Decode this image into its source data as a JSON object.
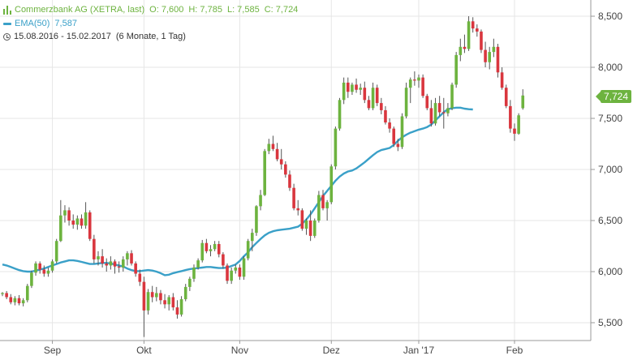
{
  "legend": {
    "instrument": "Commerzbank AG (XETRA, last)",
    "open_label": "O: 7,600",
    "high_label": "H: 7,785",
    "low_label": "L: 7,585",
    "close_label": "C: 7,724",
    "ema_label": "EMA(50)",
    "ema_value": "7,587",
    "date_range": "15.08.2016 - 15.02.2017",
    "period": "(6 Monate, 1 Tag)",
    "candle_icon": "candlestick-icon",
    "ema_icon": "line-dash-icon",
    "period_icon": "clock-icon"
  },
  "last_price_label": "7,724",
  "colors": {
    "up": "#6db33f",
    "down": "#d9363e",
    "ema": "#3aa0c8",
    "grid": "#e6e6e6",
    "axis_text": "#444444"
  },
  "chart_data": {
    "type": "candlestick",
    "title": "",
    "xlabel": "",
    "ylabel": "",
    "ylim": [
      5300,
      8650
    ],
    "y_ticks": [
      "5,500",
      "6,000",
      "6,500",
      "7,000",
      "7,500",
      "8,000",
      "8,500"
    ],
    "y_tick_values": [
      5500,
      6000,
      6500,
      7000,
      7500,
      8000,
      8500
    ],
    "x_ticks": [
      "Sep",
      "Okt",
      "Nov",
      "Dez",
      "Jan '17",
      "Feb"
    ],
    "x_tick_index": [
      12,
      34,
      57,
      79,
      100,
      123
    ],
    "grid": true,
    "y_axis_side": "right",
    "candles": [
      [
        5780,
        5800,
        5760,
        5790
      ],
      [
        5790,
        5810,
        5730,
        5750
      ],
      [
        5750,
        5780,
        5680,
        5700
      ],
      [
        5700,
        5760,
        5670,
        5740
      ],
      [
        5740,
        5770,
        5670,
        5690
      ],
      [
        5690,
        5740,
        5660,
        5720
      ],
      [
        5720,
        5880,
        5700,
        5860
      ],
      [
        5860,
        6010,
        5840,
        5990
      ],
      [
        5990,
        6100,
        5960,
        6080
      ],
      [
        6080,
        6100,
        5980,
        6020
      ],
      [
        6020,
        6060,
        5950,
        5980
      ],
      [
        5980,
        6040,
        5950,
        6010
      ],
      [
        6010,
        6120,
        5990,
        6100
      ],
      [
        6100,
        6320,
        6080,
        6300
      ],
      [
        6300,
        6700,
        6290,
        6550
      ],
      [
        6550,
        6650,
        6480,
        6600
      ],
      [
        6600,
        6630,
        6450,
        6500
      ],
      [
        6500,
        6560,
        6420,
        6460
      ],
      [
        6460,
        6550,
        6410,
        6520
      ],
      [
        6520,
        6560,
        6420,
        6450
      ],
      [
        6450,
        6680,
        6420,
        6580
      ],
      [
        6580,
        6600,
        6300,
        6320
      ],
      [
        6320,
        6360,
        6080,
        6120
      ],
      [
        6120,
        6200,
        6060,
        6150
      ],
      [
        6150,
        6220,
        6040,
        6080
      ],
      [
        6080,
        6130,
        6000,
        6060
      ],
      [
        6060,
        6150,
        6020,
        6100
      ],
      [
        6100,
        6120,
        5980,
        6050
      ],
      [
        6050,
        6100,
        5990,
        6040
      ],
      [
        6040,
        6150,
        6000,
        6120
      ],
      [
        6120,
        6200,
        6060,
        6180
      ],
      [
        6180,
        6210,
        6060,
        6080
      ],
      [
        6080,
        6100,
        5950,
        5980
      ],
      [
        5980,
        6020,
        5860,
        5900
      ],
      [
        5900,
        5950,
        5360,
        5620
      ],
      [
        5620,
        5830,
        5580,
        5800
      ],
      [
        5800,
        5860,
        5700,
        5750
      ],
      [
        5750,
        5850,
        5710,
        5790
      ],
      [
        5790,
        5820,
        5680,
        5720
      ],
      [
        5720,
        5780,
        5640,
        5680
      ],
      [
        5680,
        5770,
        5620,
        5750
      ],
      [
        5750,
        5790,
        5620,
        5650
      ],
      [
        5650,
        5720,
        5540,
        5580
      ],
      [
        5580,
        5760,
        5560,
        5730
      ],
      [
        5730,
        5880,
        5710,
        5850
      ],
      [
        5850,
        5950,
        5810,
        5930
      ],
      [
        5930,
        6070,
        5900,
        6040
      ],
      [
        6040,
        6130,
        6020,
        6110
      ],
      [
        6110,
        6310,
        6090,
        6280
      ],
      [
        6280,
        6320,
        6180,
        6200
      ],
      [
        6200,
        6260,
        6150,
        6220
      ],
      [
        6220,
        6300,
        6200,
        6270
      ],
      [
        6270,
        6300,
        6140,
        6170
      ],
      [
        6170,
        6190,
        6030,
        6060
      ],
      [
        6060,
        6080,
        5880,
        5910
      ],
      [
        5910,
        6040,
        5880,
        6010
      ],
      [
        6010,
        6070,
        5980,
        6040
      ],
      [
        6040,
        6070,
        5920,
        5950
      ],
      [
        5950,
        6150,
        5920,
        6130
      ],
      [
        6130,
        6320,
        6110,
        6300
      ],
      [
        6300,
        6420,
        6200,
        6380
      ],
      [
        6380,
        6650,
        6350,
        6640
      ],
      [
        6640,
        6800,
        6600,
        6750
      ],
      [
        6750,
        7200,
        6740,
        7180
      ],
      [
        7180,
        7300,
        7150,
        7250
      ],
      [
        7250,
        7330,
        7180,
        7200
      ],
      [
        7200,
        7260,
        7080,
        7100
      ],
      [
        7100,
        7200,
        7000,
        7050
      ],
      [
        7050,
        7080,
        6920,
        6950
      ],
      [
        6950,
        6990,
        6790,
        6820
      ],
      [
        6820,
        6860,
        6600,
        6620
      ],
      [
        6620,
        6700,
        6550,
        6600
      ],
      [
        6600,
        6620,
        6400,
        6420
      ],
      [
        6420,
        6520,
        6360,
        6500
      ],
      [
        6500,
        6600,
        6300,
        6350
      ],
      [
        6350,
        6520,
        6330,
        6500
      ],
      [
        6500,
        6790,
        6480,
        6750
      ],
      [
        6750,
        6800,
        6600,
        6620
      ],
      [
        6620,
        6700,
        6500,
        6680
      ],
      [
        6680,
        7050,
        6660,
        7030
      ],
      [
        7030,
        7420,
        7000,
        7400
      ],
      [
        7400,
        7700,
        7380,
        7680
      ],
      [
        7680,
        7900,
        7640,
        7850
      ],
      [
        7850,
        7900,
        7700,
        7760
      ],
      [
        7760,
        7850,
        7730,
        7830
      ],
      [
        7830,
        7890,
        7750,
        7780
      ],
      [
        7780,
        7840,
        7730,
        7800
      ],
      [
        7800,
        7860,
        7650,
        7680
      ],
      [
        7680,
        7720,
        7580,
        7600
      ],
      [
        7600,
        7850,
        7580,
        7800
      ],
      [
        7800,
        7830,
        7620,
        7650
      ],
      [
        7650,
        7700,
        7540,
        7580
      ],
      [
        7580,
        7620,
        7440,
        7460
      ],
      [
        7460,
        7500,
        7360,
        7400
      ],
      [
        7400,
        7420,
        7220,
        7250
      ],
      [
        7250,
        7300,
        7180,
        7220
      ],
      [
        7220,
        7550,
        7200,
        7520
      ],
      [
        7520,
        7850,
        7500,
        7800
      ],
      [
        7800,
        7900,
        7650,
        7880
      ],
      [
        7880,
        7960,
        7820,
        7870
      ],
      [
        7870,
        7930,
        7800,
        7900
      ],
      [
        7900,
        7930,
        7700,
        7720
      ],
      [
        7720,
        7740,
        7580,
        7600
      ],
      [
        7600,
        7680,
        7420,
        7450
      ],
      [
        7450,
        7700,
        7430,
        7650
      ],
      [
        7650,
        7720,
        7520,
        7560
      ],
      [
        7560,
        7700,
        7400,
        7550
      ],
      [
        7550,
        7650,
        7520,
        7600
      ],
      [
        7600,
        7850,
        7580,
        7830
      ],
      [
        7830,
        8150,
        7800,
        8120
      ],
      [
        8120,
        8280,
        8060,
        8200
      ],
      [
        8200,
        8320,
        8140,
        8180
      ],
      [
        8180,
        8500,
        8160,
        8450
      ],
      [
        8450,
        8490,
        8340,
        8380
      ],
      [
        8380,
        8420,
        8300,
        8350
      ],
      [
        8350,
        8370,
        8140,
        8170
      ],
      [
        8170,
        8250,
        8000,
        8050
      ],
      [
        8050,
        8200,
        7980,
        8150
      ],
      [
        8150,
        8280,
        8100,
        8200
      ],
      [
        8200,
        8230,
        7900,
        7950
      ],
      [
        7950,
        8000,
        7780,
        7800
      ],
      [
        7800,
        7830,
        7600,
        7620
      ],
      [
        7620,
        7680,
        7360,
        7400
      ],
      [
        7400,
        7450,
        7280,
        7350
      ],
      [
        7350,
        7550,
        7340,
        7530
      ],
      [
        7600,
        7785,
        7585,
        7724
      ]
    ],
    "ema": [
      6070,
      6060,
      6045,
      6030,
      6015,
      6005,
      6000,
      6000,
      6010,
      6020,
      6030,
      6045,
      6060,
      6075,
      6090,
      6100,
      6110,
      6110,
      6105,
      6095,
      6085,
      6075,
      6075,
      6080,
      6085,
      6085,
      6080,
      6070,
      6060,
      6050,
      6030,
      6015,
      6005,
      6005,
      6010,
      6015,
      6010,
      6000,
      5985,
      5965,
      5970,
      5985,
      5995,
      6005,
      6015,
      6025,
      6030,
      6035,
      6040,
      6045,
      6045,
      6040,
      6035,
      6035,
      6040,
      6055,
      6070,
      6105,
      6150,
      6190,
      6240,
      6280,
      6320,
      6355,
      6380,
      6395,
      6405,
      6410,
      6415,
      6420,
      6430,
      6440,
      6470,
      6510,
      6560,
      6620,
      6680,
      6740,
      6790,
      6840,
      6890,
      6930,
      6960,
      6980,
      6990,
      7010,
      7040,
      7070,
      7105,
      7140,
      7170,
      7190,
      7200,
      7210,
      7240,
      7280,
      7315,
      7340,
      7360,
      7375,
      7390,
      7400,
      7415,
      7440,
      7480,
      7520,
      7560,
      7590,
      7600,
      7605,
      7605,
      7595,
      7590,
      7587
    ]
  }
}
